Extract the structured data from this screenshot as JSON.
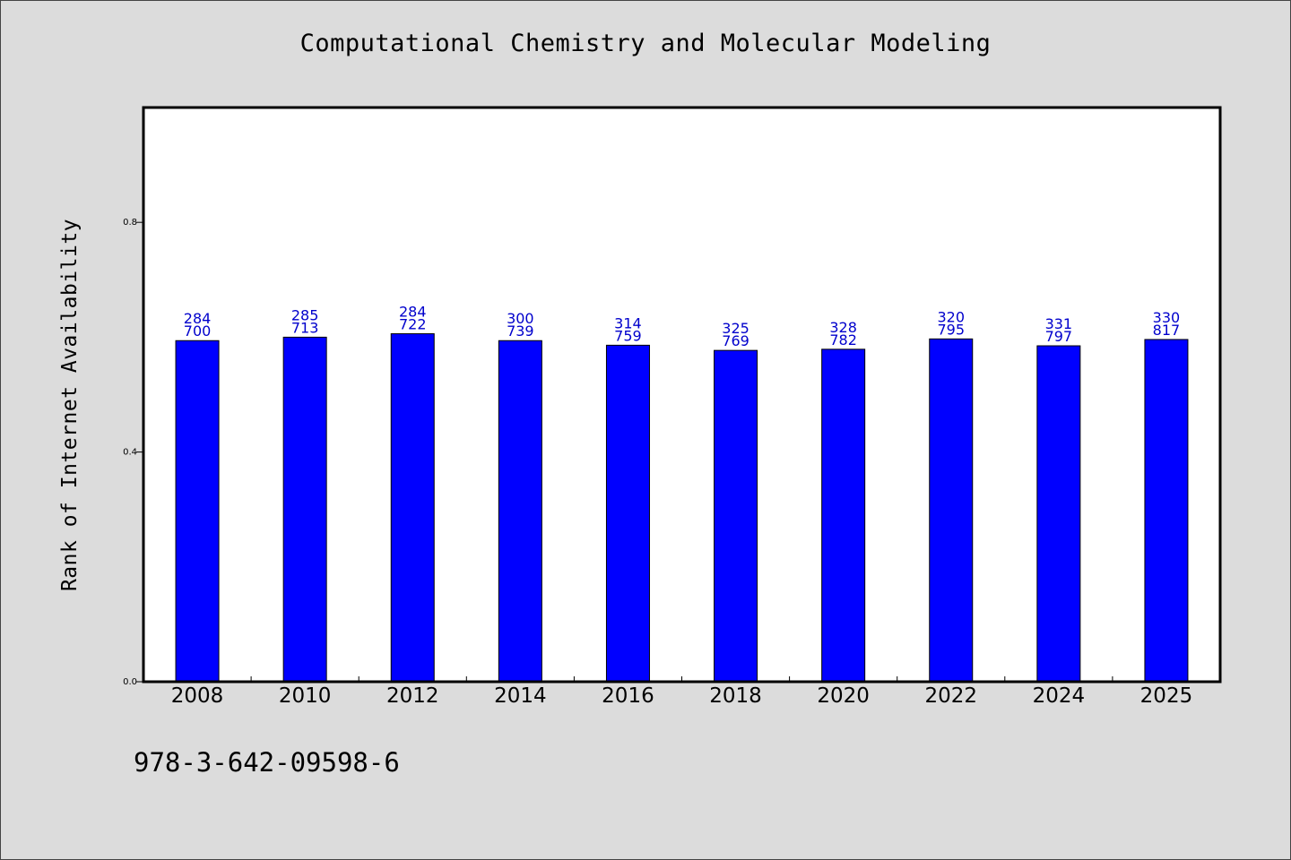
{
  "chart_data": {
    "type": "bar",
    "title": "Computational Chemistry and Molecular Modeling",
    "xlabel": "",
    "ylabel": "Rank of Internet Availability",
    "categories": [
      "2008",
      "2010",
      "2012",
      "2014",
      "2016",
      "2018",
      "2020",
      "2022",
      "2024",
      "2025"
    ],
    "values": [
      0.594,
      0.6,
      0.606,
      0.594,
      0.586,
      0.577,
      0.579,
      0.597,
      0.585,
      0.596
    ],
    "label_top": [
      "284",
      "285",
      "284",
      "300",
      "314",
      "325",
      "328",
      "320",
      "331",
      "330"
    ],
    "label_bottom": [
      "700",
      "713",
      "722",
      "739",
      "759",
      "769",
      "782",
      "795",
      "797",
      "817"
    ],
    "yticks": [
      "0.0",
      "0.4",
      "0.8"
    ],
    "ylim": [
      0,
      1.0
    ],
    "grid": false,
    "legend": "none",
    "bar_color": "#0000ff",
    "label_color": "#0000cc",
    "background_color": "#dcdcdc",
    "plot_background": "#ffffff"
  },
  "footer": {
    "isbn": "978-3-642-09598-6"
  }
}
